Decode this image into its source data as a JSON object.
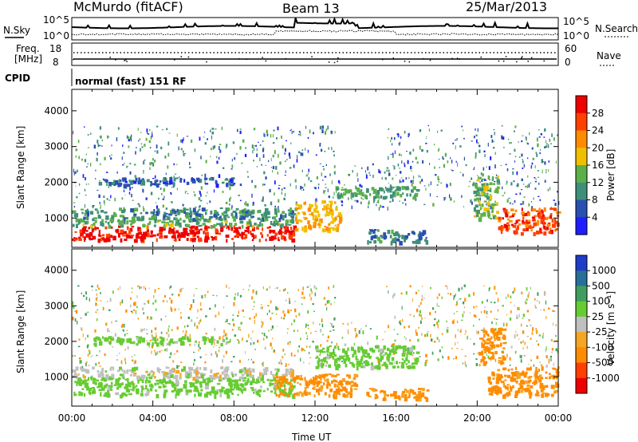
{
  "header": {
    "station": "McMurdo (fitACF)",
    "beam": "Beam 13",
    "date": "25/Mar/2013"
  },
  "top_panels": {
    "nsky_label": "N.Sky",
    "nsearch_label": "N.Search",
    "count_ticks": [
      "10^5",
      "10^0"
    ],
    "freq_label_line1": "Freq.",
    "freq_label_line2": "[MHz]",
    "freq_ticks": [
      "18",
      "8"
    ],
    "nave_label": "Nave",
    "nave_ticks": [
      "60",
      "0"
    ],
    "cpid_label": "CPID",
    "cpid_text": "normal (fast) 151 RF"
  },
  "colors": {
    "power_scale": [
      "#1e1eff",
      "#2950b0",
      "#3f8f7a",
      "#5bb04a",
      "#f0c000",
      "#ff8c00",
      "#ff4000",
      "#ee0000"
    ],
    "velocity_scale": [
      "#ee0000",
      "#ff4000",
      "#ff8c00",
      "#f5a623",
      "#c0c0c0",
      "#66cc33",
      "#3f9e5f",
      "#2a6e9a",
      "#1e3cc8"
    ]
  },
  "chart_data": [
    {
      "type": "heatmap",
      "name": "power",
      "xlabel": "",
      "ylabel": "Slant Range [km]",
      "x_range": [
        "00:00",
        "24:00"
      ],
      "ylim": [
        180,
        4600
      ],
      "x_ticks": [
        "00:00",
        "04:00",
        "08:00",
        "12:00",
        "16:00",
        "20:00",
        "00:00"
      ],
      "y_ticks": [
        1000,
        2000,
        3000,
        4000
      ],
      "colorbar_label": "Power [dB]",
      "colorbar_ticks": [
        "4",
        "8",
        "12",
        "16",
        "20",
        "24",
        "28"
      ],
      "colorbar_range": [
        0,
        32
      ],
      "regions": [
        {
          "t0": 0.0,
          "t1": 11.0,
          "r0": 400,
          "r1": 800,
          "value": 30
        },
        {
          "t0": 0.0,
          "t1": 11.0,
          "r0": 800,
          "r1": 1000,
          "value": 13
        },
        {
          "t0": 0.0,
          "t1": 11.0,
          "r0": 1000,
          "r1": 1300,
          "value": 10
        },
        {
          "t0": 11.0,
          "t1": 13.2,
          "r0": 700,
          "r1": 1500,
          "value": 20
        },
        {
          "t0": 13.0,
          "t1": 17.0,
          "r0": 1600,
          "r1": 1900,
          "value": 12
        },
        {
          "t0": 14.5,
          "t1": 17.5,
          "r0": 350,
          "r1": 700,
          "value": 9
        },
        {
          "t0": 21.0,
          "t1": 24.0,
          "r0": 600,
          "r1": 1300,
          "value": 26
        },
        {
          "t0": 19.8,
          "t1": 21.0,
          "r0": 1000,
          "r1": 2200,
          "value": 14
        },
        {
          "t0": 1.0,
          "t1": 8.0,
          "r0": 1950,
          "r1": 2150,
          "value": 7
        }
      ]
    },
    {
      "type": "heatmap",
      "name": "velocity",
      "xlabel": "Time UT",
      "ylabel": "Slant Range [km]",
      "x_range": [
        "00:00",
        "24:00"
      ],
      "ylim": [
        180,
        4600
      ],
      "x_ticks": [
        "00:00",
        "04:00",
        "08:00",
        "12:00",
        "16:00",
        "20:00",
        "00:00"
      ],
      "y_ticks": [
        1000,
        2000,
        3000,
        4000
      ],
      "colorbar_label": "Velocity [m s⁻¹]",
      "colorbar_ticks": [
        "1000",
        "500",
        "100",
        "25",
        "-25",
        "-100",
        "-500",
        "-1000"
      ],
      "regions": [
        {
          "t0": 0.0,
          "t1": 11.0,
          "r0": 500,
          "r1": 1000,
          "value": 60
        },
        {
          "t0": 0.0,
          "t1": 11.0,
          "r0": 1000,
          "r1": 1300,
          "value": 0
        },
        {
          "t0": 10.0,
          "t1": 14.0,
          "r0": 500,
          "r1": 1100,
          "value": -150
        },
        {
          "t0": 12.0,
          "t1": 17.0,
          "r0": 1300,
          "r1": 1900,
          "value": 60
        },
        {
          "t0": 14.5,
          "t1": 17.5,
          "r0": 400,
          "r1": 700,
          "value": -120
        },
        {
          "t0": 20.5,
          "t1": 24.0,
          "r0": 500,
          "r1": 1300,
          "value": -200
        },
        {
          "t0": 20.0,
          "t1": 21.3,
          "r0": 1400,
          "r1": 2400,
          "value": -300
        },
        {
          "t0": 1.0,
          "t1": 8.0,
          "r0": 1950,
          "r1": 2150,
          "value": 60
        }
      ]
    }
  ]
}
